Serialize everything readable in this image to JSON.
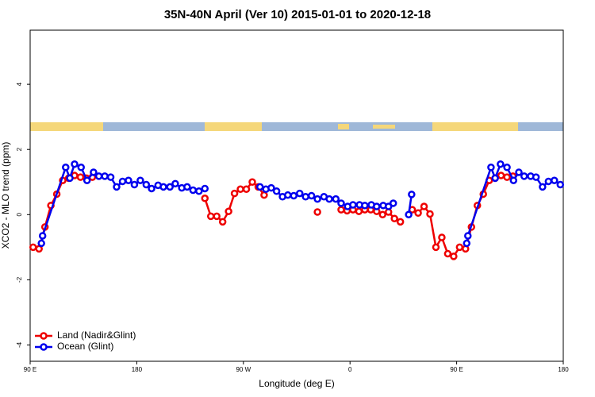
{
  "chart_data": {
    "type": "line",
    "title": "35N-40N April (Ver 10)   2015-01-01 to 2020-12-18",
    "x_label": "Longitude (deg E)",
    "y_label": "XCO2 - MLO trend (ppm)",
    "xlim": [
      90,
      540
    ],
    "ylim": [
      -4.5,
      5.66
    ],
    "xticks": [
      {
        "value": 90,
        "label": "90 E"
      },
      180,
      {
        "value": 270,
        "label": "90 W"
      },
      {
        "value": 360,
        "label": "0"
      },
      {
        "value": 450,
        "label": "90 E"
      },
      {
        "value": 540,
        "label": "180"
      }
    ],
    "yticks": [
      -4,
      -2,
      0,
      2,
      4
    ],
    "legend": "bottom-left",
    "series": [
      {
        "name": "Land (Nadir&Glint)",
        "color": "#ee0000",
        "x": [
          92.5,
          97.5,
          102.5,
          107.5,
          112.5,
          117.5,
          122.5,
          127.5,
          132.5,
          137.5,
          142.5,
          190,
          237.5,
          242.5,
          247.5,
          252.5,
          257.5,
          262.5,
          267.5,
          272.5,
          277.5,
          282.5,
          287.5,
          310,
          332.5,
          342.5,
          352.5,
          357.5,
          362.5,
          367.5,
          372.5,
          377.5,
          382.5,
          387.5,
          392.5,
          397.5,
          402.5,
          407.5,
          412.5,
          417.5,
          422.5,
          427.5,
          432.5,
          437.5,
          442.5,
          447.5,
          452.5,
          457.5,
          462.5,
          467.5,
          472.5,
          477.5,
          482.5,
          487.5,
          492.5,
          497.5
        ],
        "values": [
          -1.0,
          -1.05,
          -0.38,
          0.28,
          0.63,
          1.05,
          1.12,
          1.2,
          1.15,
          1.12,
          1.15,
          null,
          0.5,
          -0.05,
          -0.05,
          -0.22,
          0.1,
          0.65,
          0.78,
          0.78,
          1.0,
          0.85,
          0.6,
          null,
          0.08,
          null,
          0.15,
          0.12,
          0.15,
          0.1,
          0.15,
          0.15,
          0.1,
          0.0,
          0.08,
          -0.12,
          -0.22,
          null,
          0.15,
          0.05,
          0.25,
          0.02,
          -1.0,
          -0.7,
          -1.2,
          -1.28,
          -1.0,
          -1.05,
          -0.38,
          0.28,
          0.63,
          1.05,
          1.12,
          1.2,
          1.15,
          1.18
        ]
      },
      {
        "name": "Ocean (Glint)",
        "color": "#0000ee",
        "x": [
          99.5,
          100.5,
          120,
          123.5,
          127.5,
          133,
          138,
          143.5,
          148,
          153,
          158,
          163,
          168,
          173,
          178,
          183,
          188,
          192.5,
          198,
          202.5,
          208,
          212.5,
          218,
          222.5,
          227.5,
          232.5,
          237.5,
          260,
          284,
          289,
          293.5,
          298,
          303,
          307.5,
          312.5,
          317.5,
          322.5,
          327.5,
          332.5,
          338,
          342.5,
          348,
          352.5,
          358,
          362.5,
          368,
          372.5,
          378,
          382.5,
          388,
          392.5,
          396.5,
          403,
          409.5,
          412,
          435,
          458.5,
          459.5,
          479,
          482.5,
          487,
          492.5,
          498,
          502.5,
          507,
          512.5,
          517,
          522.5,
          527.5,
          532.5,
          537.5
        ],
        "values": [
          -0.88,
          -0.65,
          1.45,
          1.12,
          1.55,
          1.45,
          1.05,
          1.3,
          1.18,
          1.18,
          1.15,
          0.85,
          1.02,
          1.05,
          0.92,
          1.05,
          0.92,
          0.8,
          0.9,
          0.85,
          0.85,
          0.95,
          0.82,
          0.85,
          0.75,
          0.72,
          0.8,
          null,
          0.85,
          0.78,
          0.82,
          0.72,
          0.55,
          0.6,
          0.58,
          0.65,
          0.55,
          0.58,
          0.48,
          0.55,
          0.48,
          0.48,
          0.35,
          0.25,
          0.3,
          0.3,
          0.28,
          0.3,
          0.25,
          0.28,
          0.25,
          0.35,
          null,
          0.0,
          0.62,
          null,
          -0.88,
          -0.65,
          1.45,
          1.12,
          1.55,
          1.45,
          1.05,
          1.3,
          1.18,
          1.18,
          1.15,
          0.85,
          1.02,
          1.05,
          0.92
        ]
      }
    ]
  }
}
